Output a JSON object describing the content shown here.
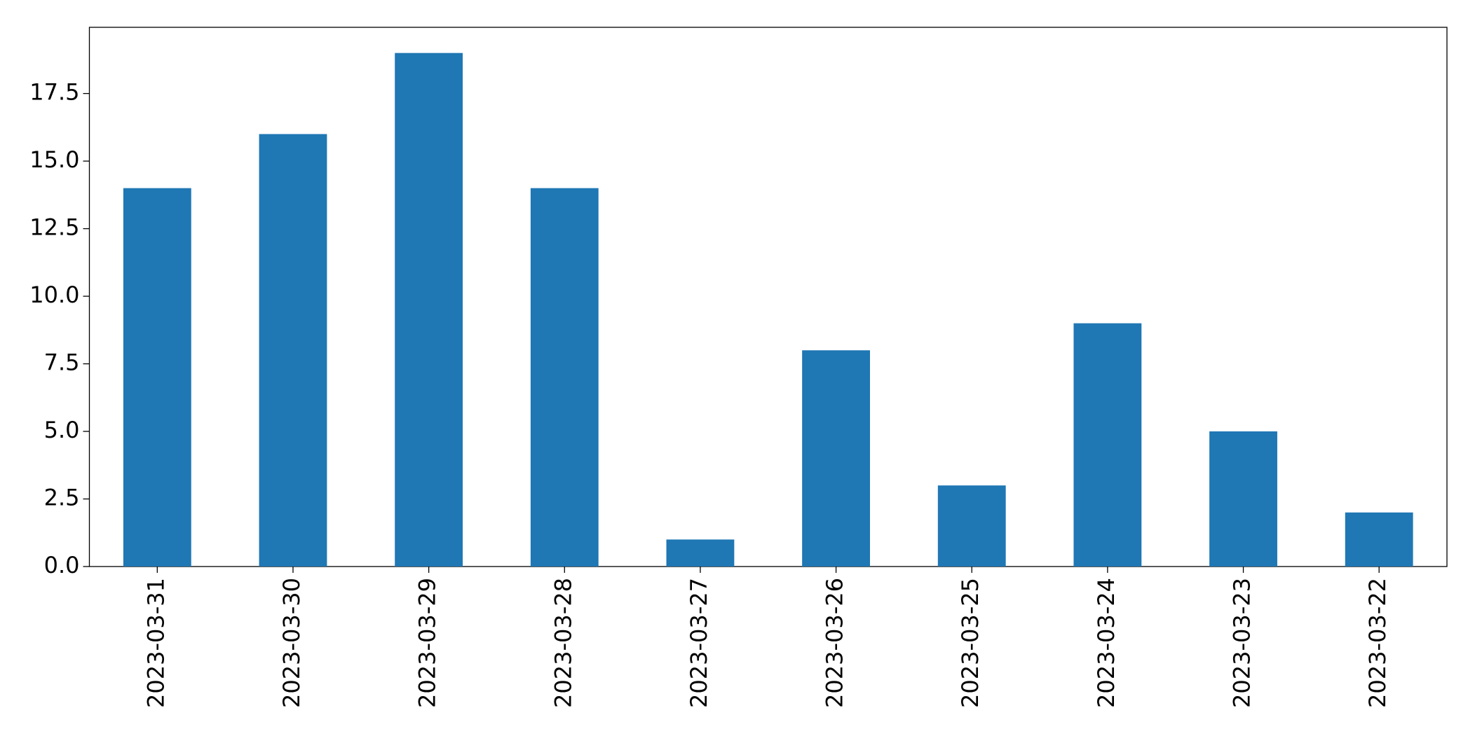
{
  "chart_data": {
    "type": "bar",
    "categories": [
      "2023-03-31",
      "2023-03-30",
      "2023-03-29",
      "2023-03-28",
      "2023-03-27",
      "2023-03-26",
      "2023-03-25",
      "2023-03-24",
      "2023-03-23",
      "2023-03-22"
    ],
    "values": [
      14,
      16,
      19,
      14,
      1,
      8,
      3,
      9,
      5,
      2
    ],
    "color": "#1f77b4",
    "ylim": [
      0,
      19.95
    ],
    "yticks": [
      {
        "value": 0,
        "label": "0.0"
      },
      2.5,
      {
        "value": 5,
        "label": "5.0"
      },
      7.5,
      {
        "value": 10,
        "label": "10.0"
      },
      12.5,
      {
        "value": 15,
        "label": "15.0"
      },
      17.5
    ],
    "grid": false
  }
}
